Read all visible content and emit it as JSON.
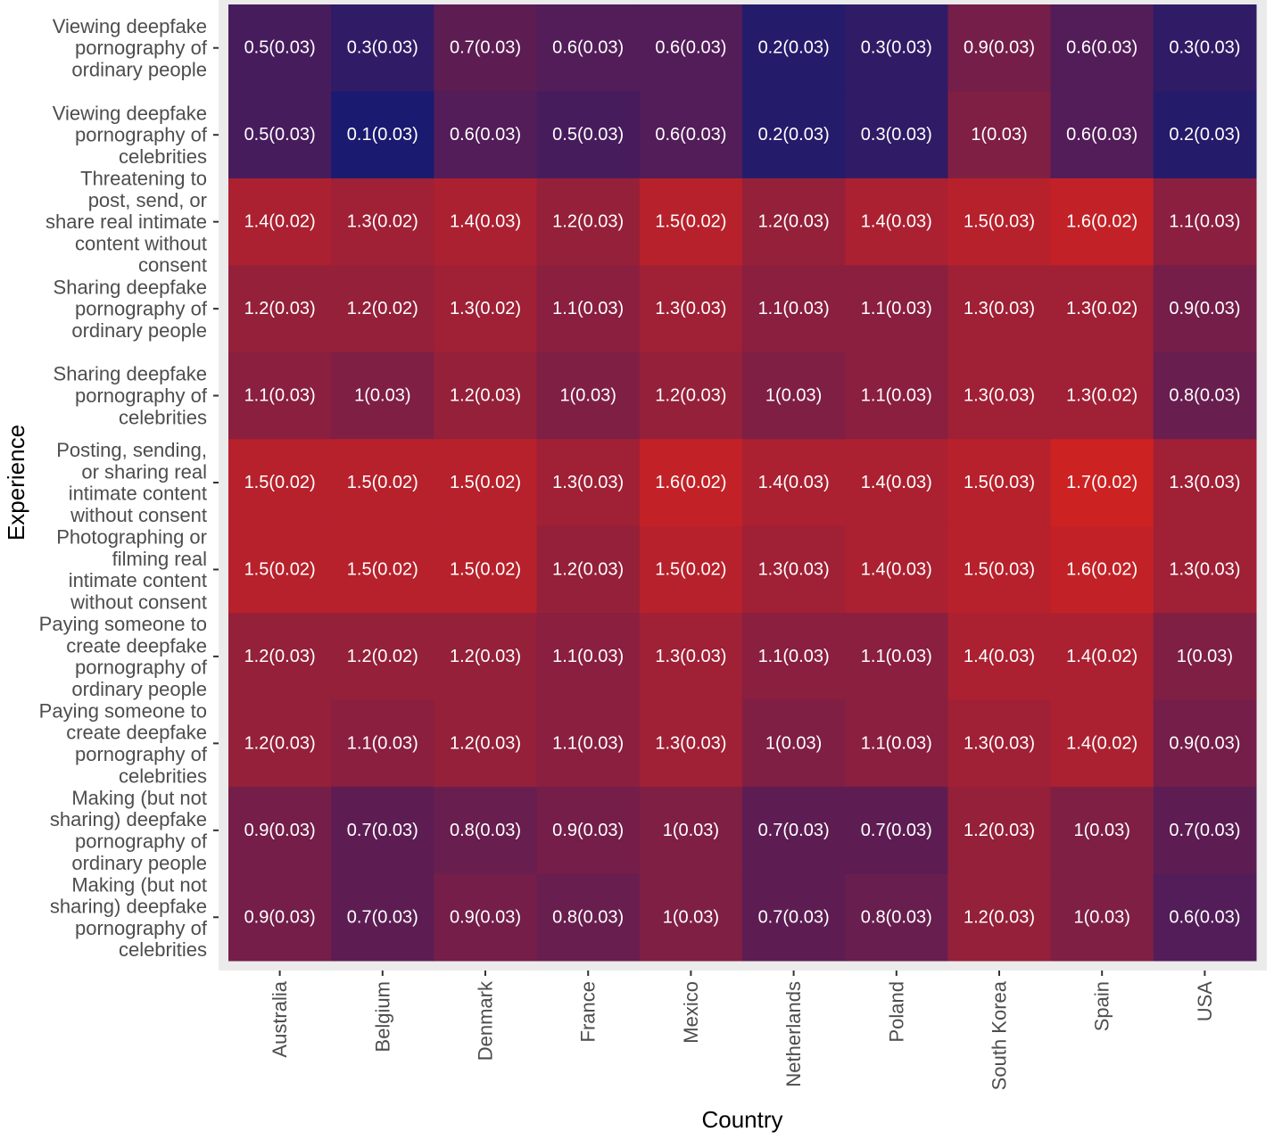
{
  "chart_data": {
    "type": "heatmap",
    "xlabel": "Country",
    "ylabel": "Experience",
    "x_categories": [
      "Australia",
      "Belgium",
      "Denmark",
      "France",
      "Mexico",
      "Netherlands",
      "Poland",
      "South Korea",
      "Spain",
      "USA"
    ],
    "y_categories": [
      [
        "Viewing deepfake",
        "pornography of",
        "ordinary people"
      ],
      [
        "Viewing deepfake",
        "pornography of",
        "celebrities"
      ],
      [
        "Threatening to",
        "post, send, or",
        "share real intimate",
        "content without",
        "consent"
      ],
      [
        "Sharing deepfake",
        "pornography of",
        "ordinary people"
      ],
      [
        "Sharing deepfake",
        "pornography of",
        "celebrities"
      ],
      [
        "Posting, sending,",
        "or sharing real",
        "intimate content",
        "without consent"
      ],
      [
        "Photographing or",
        "filming real",
        "intimate content",
        "without consent"
      ],
      [
        "Paying someone to",
        "create deepfake",
        "pornography of",
        "ordinary people"
      ],
      [
        "Paying someone to",
        "create deepfake",
        "pornography of",
        "celebrities"
      ],
      [
        "Making (but not",
        "sharing) deepfake",
        "pornography of",
        "ordinary people"
      ],
      [
        "Making (but not",
        "sharing) deepfake",
        "pornography of",
        "celebrities"
      ]
    ],
    "values": [
      [
        0.5,
        0.3,
        0.7,
        0.6,
        0.6,
        0.2,
        0.3,
        0.9,
        0.6,
        0.3
      ],
      [
        0.5,
        0.1,
        0.6,
        0.5,
        0.6,
        0.2,
        0.3,
        1.0,
        0.6,
        0.2
      ],
      [
        1.4,
        1.3,
        1.4,
        1.2,
        1.5,
        1.2,
        1.4,
        1.5,
        1.6,
        1.1
      ],
      [
        1.2,
        1.2,
        1.3,
        1.1,
        1.3,
        1.1,
        1.1,
        1.3,
        1.3,
        0.9
      ],
      [
        1.1,
        1.0,
        1.2,
        1.0,
        1.2,
        1.0,
        1.1,
        1.3,
        1.3,
        0.8
      ],
      [
        1.5,
        1.5,
        1.5,
        1.3,
        1.6,
        1.4,
        1.4,
        1.5,
        1.7,
        1.3
      ],
      [
        1.5,
        1.5,
        1.5,
        1.2,
        1.5,
        1.3,
        1.4,
        1.5,
        1.6,
        1.3
      ],
      [
        1.2,
        1.2,
        1.2,
        1.1,
        1.3,
        1.1,
        1.1,
        1.4,
        1.4,
        1.0
      ],
      [
        1.2,
        1.1,
        1.2,
        1.1,
        1.3,
        1.0,
        1.1,
        1.3,
        1.4,
        0.9
      ],
      [
        0.9,
        0.7,
        0.8,
        0.9,
        1.0,
        0.7,
        0.7,
        1.2,
        1.0,
        0.7
      ],
      [
        0.9,
        0.7,
        0.9,
        0.8,
        1.0,
        0.7,
        0.8,
        1.2,
        1.0,
        0.6
      ]
    ],
    "labels": [
      [
        "0.5(0.03)",
        "0.3(0.03)",
        "0.7(0.03)",
        "0.6(0.03)",
        "0.6(0.03)",
        "0.2(0.03)",
        "0.3(0.03)",
        "0.9(0.03)",
        "0.6(0.03)",
        "0.3(0.03)"
      ],
      [
        "0.5(0.03)",
        "0.1(0.03)",
        "0.6(0.03)",
        "0.5(0.03)",
        "0.6(0.03)",
        "0.2(0.03)",
        "0.3(0.03)",
        "1(0.03)",
        "0.6(0.03)",
        "0.2(0.03)"
      ],
      [
        "1.4(0.02)",
        "1.3(0.02)",
        "1.4(0.03)",
        "1.2(0.03)",
        "1.5(0.02)",
        "1.2(0.03)",
        "1.4(0.03)",
        "1.5(0.03)",
        "1.6(0.02)",
        "1.1(0.03)"
      ],
      [
        "1.2(0.03)",
        "1.2(0.02)",
        "1.3(0.02)",
        "1.1(0.03)",
        "1.3(0.03)",
        "1.1(0.03)",
        "1.1(0.03)",
        "1.3(0.03)",
        "1.3(0.02)",
        "0.9(0.03)"
      ],
      [
        "1.1(0.03)",
        "1(0.03)",
        "1.2(0.03)",
        "1(0.03)",
        "1.2(0.03)",
        "1(0.03)",
        "1.1(0.03)",
        "1.3(0.03)",
        "1.3(0.02)",
        "0.8(0.03)"
      ],
      [
        "1.5(0.02)",
        "1.5(0.02)",
        "1.5(0.02)",
        "1.3(0.03)",
        "1.6(0.02)",
        "1.4(0.03)",
        "1.4(0.03)",
        "1.5(0.03)",
        "1.7(0.02)",
        "1.3(0.03)"
      ],
      [
        "1.5(0.02)",
        "1.5(0.02)",
        "1.5(0.02)",
        "1.2(0.03)",
        "1.5(0.02)",
        "1.3(0.03)",
        "1.4(0.03)",
        "1.5(0.03)",
        "1.6(0.02)",
        "1.3(0.03)"
      ],
      [
        "1.2(0.03)",
        "1.2(0.02)",
        "1.2(0.03)",
        "1.1(0.03)",
        "1.3(0.03)",
        "1.1(0.03)",
        "1.1(0.03)",
        "1.4(0.03)",
        "1.4(0.02)",
        "1(0.03)"
      ],
      [
        "1.2(0.03)",
        "1.1(0.03)",
        "1.2(0.03)",
        "1.1(0.03)",
        "1.3(0.03)",
        "1(0.03)",
        "1.1(0.03)",
        "1.3(0.03)",
        "1.4(0.02)",
        "0.9(0.03)"
      ],
      [
        "0.9(0.03)",
        "0.7(0.03)",
        "0.8(0.03)",
        "0.9(0.03)",
        "1(0.03)",
        "0.7(0.03)",
        "0.7(0.03)",
        "1.2(0.03)",
        "1(0.03)",
        "0.7(0.03)"
      ],
      [
        "0.9(0.03)",
        "0.7(0.03)",
        "0.9(0.03)",
        "0.8(0.03)",
        "1(0.03)",
        "0.7(0.03)",
        "0.8(0.03)",
        "1.2(0.03)",
        "1(0.03)",
        "0.6(0.03)"
      ]
    ],
    "color_low": "#1a1a70",
    "color_high": "#cd2222",
    "panel_background": "#ebebeb",
    "grid": false,
    "legend": "none"
  }
}
